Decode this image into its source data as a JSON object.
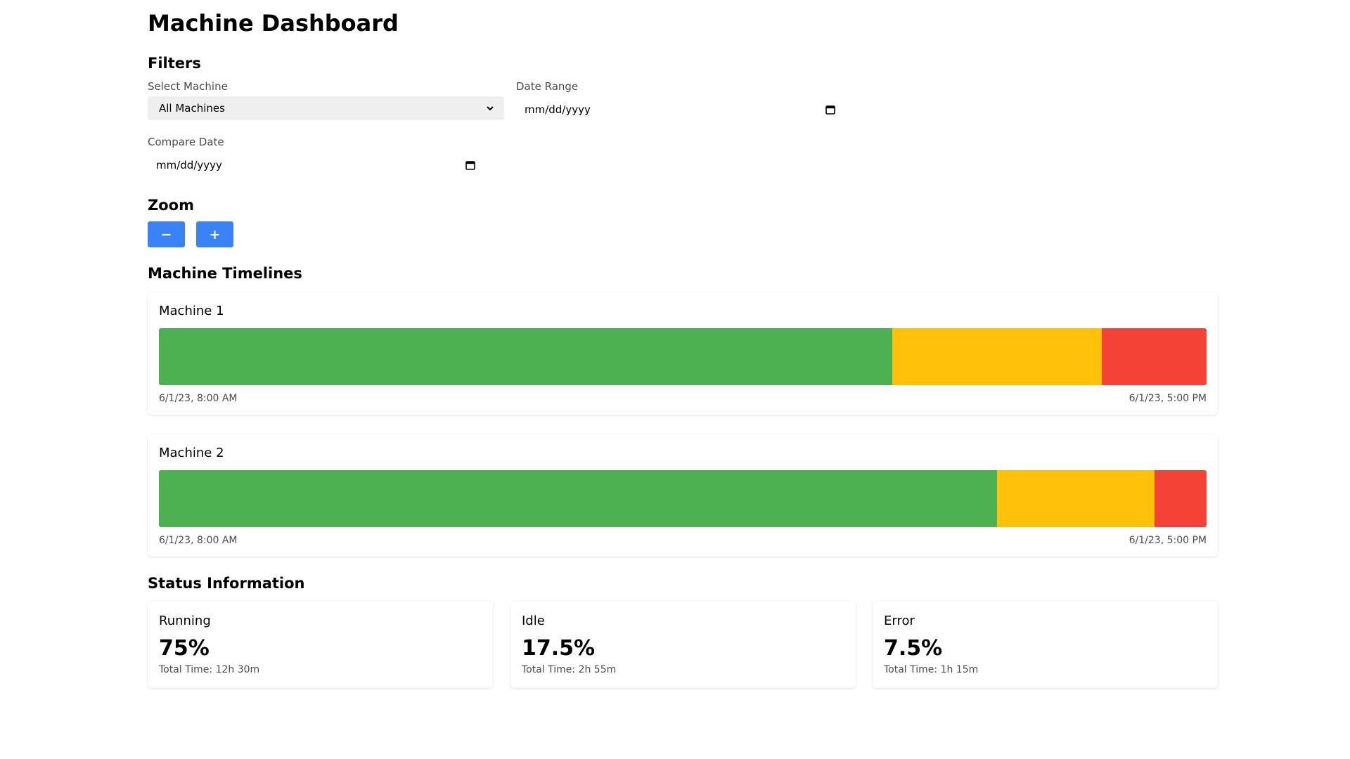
{
  "header": {
    "title": "Machine Dashboard"
  },
  "filters": {
    "section_title": "Filters",
    "machine_label": "Select Machine",
    "machine_selected": "All Machines",
    "date_range_label": "Date Range",
    "date_range_placeholder": "mm/dd/yyyy",
    "compare_label": "Compare Date",
    "compare_placeholder": "mm/dd/yyyy",
    "icons": {
      "select": "chevron-down-icon",
      "date": "calendar-icon"
    }
  },
  "zoom": {
    "section_title": "Zoom",
    "zoom_out_label": "−",
    "zoom_in_label": "+",
    "button_color": "#3b82f6"
  },
  "timelines": {
    "section_title": "Machine Timelines",
    "machines": [
      {
        "name": "Machine 1",
        "start": "6/1/23, 8:00 AM",
        "end": "6/1/23, 5:00 PM",
        "segments": [
          {
            "status": "running",
            "fraction": 0.7
          },
          {
            "status": "idle",
            "fraction": 0.2
          },
          {
            "status": "error",
            "fraction": 0.1
          }
        ]
      },
      {
        "name": "Machine 2",
        "start": "6/1/23, 8:00 AM",
        "end": "6/1/23, 5:00 PM",
        "segments": [
          {
            "status": "running",
            "fraction": 0.8
          },
          {
            "status": "idle",
            "fraction": 0.15
          },
          {
            "status": "error",
            "fraction": 0.05
          }
        ]
      }
    ]
  },
  "status_colors": {
    "running": "#4caf50",
    "idle": "#ffc107",
    "error": "#f44336"
  },
  "status_info": {
    "section_title": "Status Information",
    "items": [
      {
        "name": "Running",
        "value": "75%",
        "total": "Total Time: 12h 30m"
      },
      {
        "name": "Idle",
        "value": "17.5%",
        "total": "Total Time: 2h 55m"
      },
      {
        "name": "Error",
        "value": "7.5%",
        "total": "Total Time: 1h 15m"
      }
    ]
  }
}
